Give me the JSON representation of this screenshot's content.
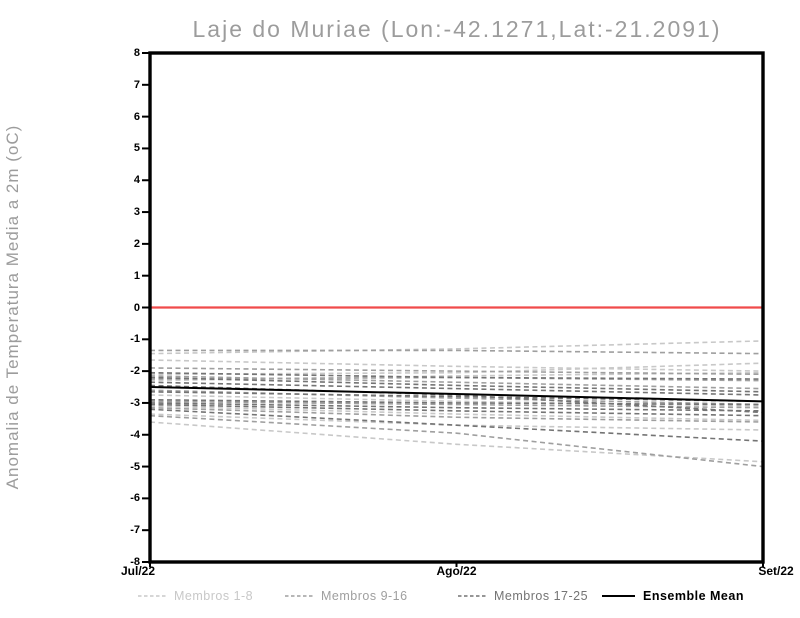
{
  "chart_data": {
    "type": "line",
    "title": "Laje do Muriae (Lon:-42.1271,Lat:-21.2091)",
    "ylabel": "Anomalia de Temperatura Media a 2m (oC)",
    "xlabel": "",
    "x_ticklabels": [
      "Jul/22",
      "Ago/22",
      "Set/22"
    ],
    "y_ticklabels": [
      "8",
      "7",
      "6",
      "5",
      "4",
      "3",
      "2",
      "1",
      "0",
      "-1",
      "-2",
      "-3",
      "-4",
      "-5",
      "-6",
      "-7",
      "-8"
    ],
    "ylim": [
      -8,
      8
    ],
    "grid": false,
    "legend_position": "bottom",
    "background_color": "#ffffff",
    "frame_color": "#000000",
    "zero_line": {
      "value": 0,
      "color": "#f04b4b"
    },
    "groups": [
      {
        "name": "Membros 1-8",
        "color": "#c8c8c8",
        "line_style": "dashed",
        "members": [
          [
            -1.45,
            -1.3,
            -1.05
          ],
          [
            -1.65,
            -1.85,
            -2.0
          ],
          [
            -2.1,
            -2.05,
            -1.75
          ],
          [
            -2.3,
            -2.15,
            -2.05
          ],
          [
            -2.75,
            -2.95,
            -3.1
          ],
          [
            -3.1,
            -3.35,
            -3.55
          ],
          [
            -3.35,
            -3.7,
            -3.85
          ],
          [
            -3.6,
            -4.3,
            -4.85
          ]
        ]
      },
      {
        "name": "Membros 9-16",
        "color": "#9f9f9f",
        "line_style": "dashed",
        "members": [
          [
            -1.35,
            -1.35,
            -1.45
          ],
          [
            -1.9,
            -2.0,
            -2.1
          ],
          [
            -2.15,
            -2.35,
            -2.55
          ],
          [
            -2.25,
            -2.2,
            -2.3
          ],
          [
            -2.6,
            -2.85,
            -3.05
          ],
          [
            -2.95,
            -3.05,
            -3.15
          ],
          [
            -3.15,
            -3.45,
            -3.6
          ],
          [
            -3.4,
            -3.95,
            -5.0
          ]
        ]
      },
      {
        "name": "Membros 17-25",
        "color": "#747474",
        "line_style": "dashed",
        "members": [
          [
            -2.05,
            -2.2,
            -2.25
          ],
          [
            -2.2,
            -2.45,
            -2.65
          ],
          [
            -2.35,
            -2.55,
            -2.75
          ],
          [
            -2.65,
            -2.8,
            -2.95
          ],
          [
            -2.9,
            -3.0,
            -3.05
          ],
          [
            -3.0,
            -3.15,
            -3.25
          ],
          [
            -3.05,
            -3.25,
            -3.4
          ],
          [
            -3.2,
            -3.7,
            -4.2
          ],
          [
            -2.45,
            -2.75,
            -3.3
          ]
        ]
      }
    ],
    "ensemble_mean": {
      "name": "Ensemble Mean",
      "color": "#000000",
      "line_style": "solid",
      "values": [
        -2.5,
        -2.72,
        -2.95
      ]
    }
  }
}
